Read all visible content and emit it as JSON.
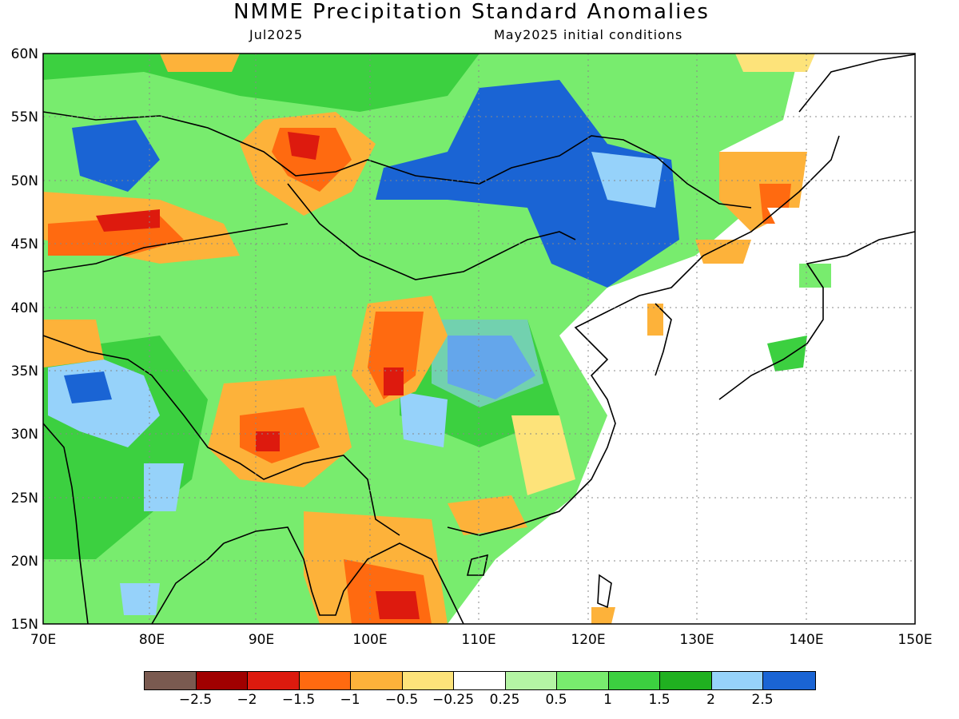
{
  "title": "NMME Precipitation Standard Anomalies",
  "subtitle_left": "Jul2025",
  "subtitle_right": "May2025 initial conditions",
  "map": {
    "region": "East Asia",
    "lon_range": [
      70,
      150
    ],
    "lat_range": [
      15,
      60
    ],
    "lat_ticks": [
      "60N",
      "55N",
      "50N",
      "45N",
      "40N",
      "35N",
      "30N",
      "25N",
      "20N",
      "15N"
    ],
    "lon_ticks": [
      "70E",
      "80E",
      "90E",
      "100E",
      "110E",
      "120E",
      "130E",
      "140E",
      "150E"
    ],
    "grid": "dotted"
  },
  "colorbar": {
    "colors": [
      "#7a5a50",
      "#a00000",
      "#dd1a0e",
      "#ff6a10",
      "#fdb23a",
      "#fde37a",
      "#ffffff",
      "#b4f4a4",
      "#78ec6e",
      "#3cd040",
      "#20b020",
      "#96d2fa",
      "#1a64d4"
    ],
    "labels": [
      "−2.5",
      "−2",
      "−1.5",
      "−1",
      "−0.5",
      "−0.25",
      "0.25",
      "0.5",
      "1",
      "1.5",
      "2",
      "2.5"
    ]
  }
}
